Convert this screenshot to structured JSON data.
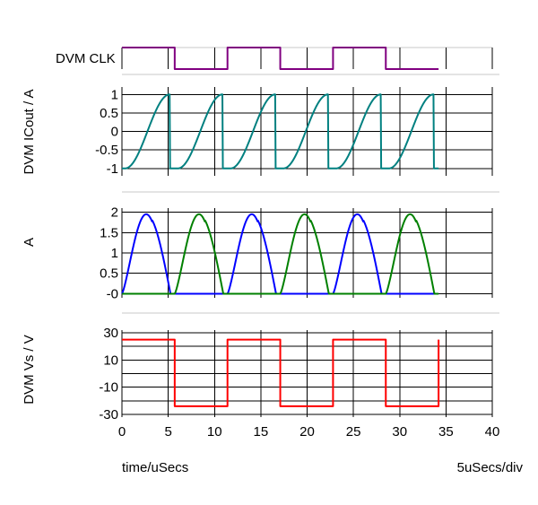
{
  "chart_data": {
    "type": "line",
    "x": {
      "label": "time/uSecs",
      "scale_label": "5uSecs/div",
      "range": [
        0,
        40
      ],
      "ticks": [
        0,
        5,
        10,
        15,
        20,
        25,
        30,
        35,
        40
      ]
    },
    "panels": [
      {
        "id": "clk",
        "ylabel": "DVM CLK",
        "ylim": [
          0,
          1
        ],
        "ticks": [],
        "series": [
          {
            "color": "#800080",
            "points": [
              [
                0,
                1
              ],
              [
                5.7,
                1
              ],
              [
                5.7,
                0
              ],
              [
                11.4,
                0
              ],
              [
                11.4,
                1
              ],
              [
                17.1,
                1
              ],
              [
                17.1,
                0
              ],
              [
                22.8,
                0
              ],
              [
                22.8,
                1
              ],
              [
                28.5,
                1
              ],
              [
                28.5,
                0
              ],
              [
                34.2,
                0
              ]
            ]
          }
        ]
      },
      {
        "id": "icout",
        "ylabel": "DVM ICout / A",
        "ylim": [
          -1.2,
          1.2
        ],
        "ticks": [
          1,
          0.5,
          0,
          -0.5,
          -1
        ],
        "tick_labels": [
          "1",
          "0.5",
          "0",
          "-0.5",
          "-1"
        ],
        "series": [
          {
            "color": "#008080",
            "function": "icout",
            "period": 5.7,
            "amplitude": 1
          }
        ]
      },
      {
        "id": "a",
        "ylabel": "A",
        "ylim": [
          -0.1,
          2.1
        ],
        "ticks": [
          2,
          1.5,
          1,
          0.5,
          0
        ],
        "tick_labels": [
          "2",
          "1.5",
          "1",
          "0.5",
          "-0"
        ],
        "series": [
          {
            "color": "#0000ff",
            "function": "pulse",
            "start": 0,
            "width": 5.7,
            "period": 11.4,
            "amplitude": 1.95
          },
          {
            "color": "#008000",
            "function": "pulse",
            "start": 5.7,
            "width": 5.7,
            "period": 11.4,
            "amplitude": 1.95
          }
        ]
      },
      {
        "id": "vs",
        "ylabel": "DVM Vs / V",
        "ylim": [
          -32,
          32
        ],
        "ticks": [
          30,
          10,
          -10,
          -30
        ],
        "tick_labels": [
          "30",
          "10",
          "-10",
          "-30"
        ],
        "series": [
          {
            "color": "#ff0000",
            "points": [
              [
                0,
                25
              ],
              [
                5.7,
                25
              ],
              [
                5.7,
                -24
              ],
              [
                11.4,
                -24
              ],
              [
                11.4,
                25
              ],
              [
                17.1,
                25
              ],
              [
                17.1,
                -24
              ],
              [
                22.8,
                -24
              ],
              [
                22.8,
                25
              ],
              [
                28.5,
                25
              ],
              [
                28.5,
                -24
              ],
              [
                34.2,
                -24
              ],
              [
                34.2,
                25
              ]
            ]
          }
        ]
      }
    ]
  }
}
